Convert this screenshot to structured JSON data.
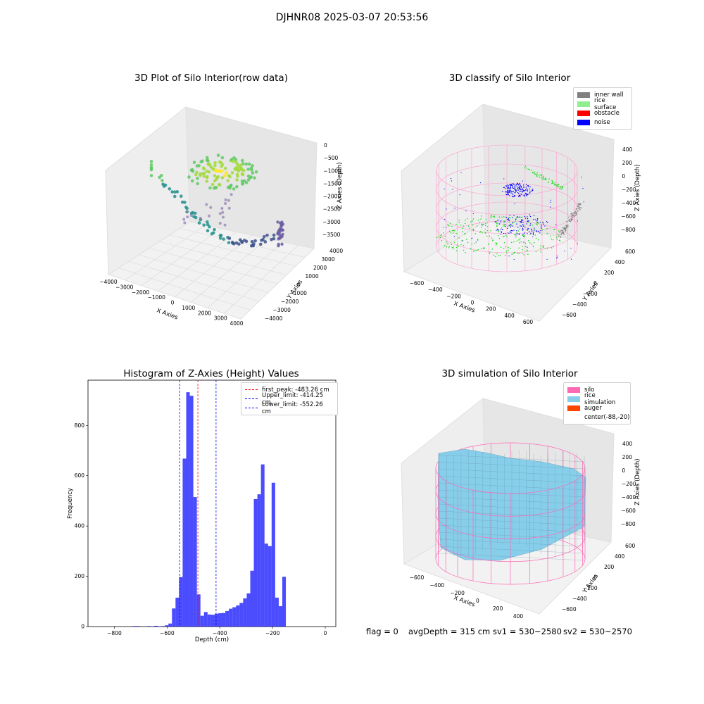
{
  "suptitle": "DJHNR08 2025-03-07 20:53:56",
  "panels": {
    "raw": {
      "title": "3D Plot of Silo Interior(row data)",
      "xlabel": "X Axies",
      "ylabel": "Y Axies",
      "zlabel": "Z Axies (Depth)",
      "xticks": [
        "−4000",
        "−3000",
        "−2000",
        "−1000",
        "0",
        "1000",
        "2000",
        "3000",
        "4000"
      ],
      "yticks": [
        "−4000",
        "−3000",
        "−2000",
        "−1000",
        "0",
        "1000",
        "2000",
        "3000",
        "4000"
      ],
      "zticks": [
        "0",
        "−500",
        "−1000",
        "−1500",
        "−2000",
        "−2500",
        "−3000",
        "−3500"
      ]
    },
    "classify": {
      "title": "3D classify of Silo Interior",
      "xlabel": "X Axies",
      "ylabel": "Y Axies",
      "zlabel": "Z Axies (Depth)",
      "xticks": [
        "−600",
        "−400",
        "−200",
        "0",
        "200",
        "400",
        "600"
      ],
      "yticks": [
        "−600",
        "−400",
        "−200",
        "0",
        "200",
        "400",
        "600"
      ],
      "zticks": [
        "400",
        "200",
        "0",
        "−200",
        "−400",
        "−600",
        "−800"
      ],
      "legend": [
        {
          "label": "inner wall",
          "color": "#808080"
        },
        {
          "label": "rice surface",
          "color": "#90ee90"
        },
        {
          "label": "obstacle",
          "color": "#ff0000"
        },
        {
          "label": "noise",
          "color": "#0000ff"
        }
      ]
    },
    "simulation": {
      "title": "3D simulation of Silo Interior",
      "xlabel": "X Axies",
      "ylabel": "Y Axies",
      "zlabel": "Z Axies (Depth)",
      "xticks": [
        "−600",
        "−400",
        "−200",
        "0",
        "200",
        "400"
      ],
      "yticks": [
        "−600",
        "−400",
        "−200",
        "0",
        "200",
        "400",
        "600"
      ],
      "zticks": [
        "400",
        "200",
        "0",
        "−200",
        "−400",
        "−600",
        "−800"
      ],
      "legend": [
        {
          "label": "silo",
          "color": "#ff69b4"
        },
        {
          "label": "rice simulation",
          "color": "#87ceeb"
        },
        {
          "label": "auger",
          "color": "#ff4500"
        },
        {
          "label": "center(-88,-20)",
          "color": ""
        }
      ]
    }
  },
  "footer": {
    "flag": "flag = 0",
    "avg": "avgDepth = 315 cm",
    "sv1": "sv1 = 530~2580",
    "sv2": "sv2 = 530~2570"
  },
  "chart_data": [
    {
      "type": "bar",
      "title": "Histogram of Z-Axies (Height) Values",
      "xlabel": "Depth (cm)",
      "ylabel": "Frequency",
      "xlim": [
        -900,
        40
      ],
      "ylim": [
        0,
        980
      ],
      "xticks": [
        -800,
        -600,
        -400,
        -200,
        0
      ],
      "yticks": [
        0,
        200,
        400,
        600,
        800
      ],
      "bin_width": 13.5,
      "bins_start": [
        -730,
        -716.5,
        -703,
        -689.5,
        -676,
        -662.5,
        -649,
        -635.5,
        -622,
        -608.5,
        -595,
        -581.5,
        -568,
        -554.5,
        -541,
        -527.5,
        -514,
        -500.5,
        -487,
        -473.5,
        -460,
        -446.5,
        -433,
        -419.5,
        -406,
        -392.5,
        -379,
        -365.5,
        -352,
        -338.5,
        -325,
        -311.5,
        -298,
        -284.5,
        -271,
        -257.5,
        -244,
        -230.5,
        -217,
        -203.5,
        -190,
        -176.5,
        -163,
        -149.5,
        -136,
        -122.5,
        -109,
        -95.5,
        -82,
        -68.5,
        -55,
        -41.5,
        -28,
        -14.5
      ],
      "values": [
        2,
        2,
        0,
        0,
        2,
        0,
        3,
        1,
        2,
        5,
        12,
        72,
        115,
        197,
        668,
        932,
        918,
        515,
        128,
        43,
        58,
        48,
        47,
        51,
        53,
        54,
        62,
        71,
        77,
        84,
        94,
        112,
        132,
        222,
        507,
        526,
        645,
        330,
        320,
        572,
        115,
        81,
        198,
        0,
        0,
        0,
        0,
        0,
        0,
        0,
        0,
        0,
        0,
        0
      ],
      "lines": [
        {
          "label": "first_peak: -483.26 cm",
          "x": -483.26,
          "color": "#ff0000"
        },
        {
          "label": "Upper_limit: -414.25 cm",
          "x": -414.25,
          "color": "#0000ff"
        },
        {
          "label": "Lower_limit: -552.26 cm",
          "x": -552.26,
          "color": "#0000ff"
        }
      ],
      "bar_color": "#0000ff",
      "bar_alpha": 0.7,
      "legend_position": "upper right"
    }
  ]
}
